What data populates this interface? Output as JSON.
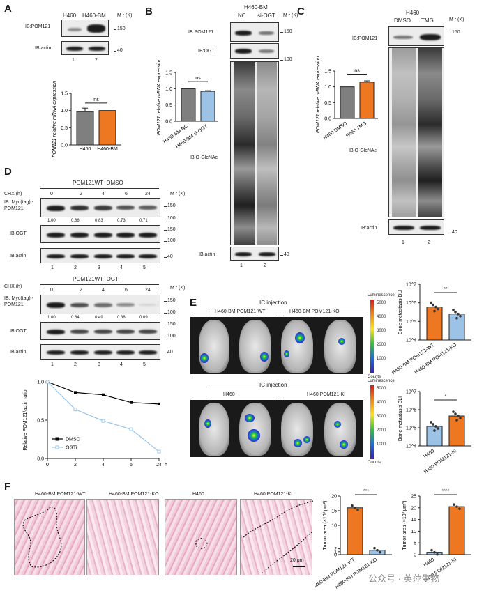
{
  "panels": {
    "A": "A",
    "B": "B",
    "C": "C",
    "D": "D",
    "E": "E",
    "F": "F"
  },
  "common": {
    "mw_unit": "M r (K)",
    "mw150": "150",
    "mw100": "100",
    "mw40": "40",
    "ib_pom121": "IB:POM121",
    "ib_actin": "IB:actin",
    "ib_ogt": "IB:OGT",
    "ib_oglcnac": "IB:O-GlcNAc",
    "lane1": "1",
    "lane2": "2",
    "lane3": "3",
    "lane4": "4",
    "lane5": "5",
    "ns": "ns"
  },
  "panelA": {
    "lanes": [
      "H460",
      "H460-BM"
    ],
    "ylabel": "POM121 relative mRNA expression",
    "chart_data": {
      "type": "bar",
      "categories": [
        "H460",
        "H460-BM"
      ],
      "values": [
        0.97,
        1.0
      ],
      "errors": [
        0.1,
        0
      ],
      "ylim": [
        0,
        1.5
      ],
      "yticks": [
        "0.0",
        "0.5",
        "1.0",
        "1.5"
      ],
      "ylabel": "POM121 relative mRNA expression",
      "colors": [
        "#7f7f7f",
        "#ee7722"
      ]
    }
  },
  "panelB": {
    "title": "H460-BM",
    "lanes": [
      "NC",
      "si-OGT"
    ],
    "ylabel": "POM121 relative mRNA expression",
    "chart_data": {
      "type": "bar",
      "categories": [
        "H460-BM NC",
        "H460-BM si-OGT"
      ],
      "values": [
        1.0,
        0.92
      ],
      "errors": [
        0,
        0.02
      ],
      "ylim": [
        0,
        1.5
      ],
      "yticks": [
        "0.0",
        "0.5",
        "1.0",
        "1.5"
      ],
      "ylabel": "POM121 relative mRNA expression",
      "colors": [
        "#7f7f7f",
        "#9cc3e6"
      ]
    }
  },
  "panelC": {
    "title": "H460",
    "lanes": [
      "DMSO",
      "TMG"
    ],
    "ylabel": "POM121 relative mRNA expression",
    "chart_data": {
      "type": "bar",
      "categories": [
        "H460 DMSO",
        "H460 TMG"
      ],
      "values": [
        1.0,
        1.15
      ],
      "errors": [
        0,
        0.04
      ],
      "ylim": [
        0,
        1.5
      ],
      "yticks": [
        "0.0",
        "0.5",
        "1.0",
        "1.5"
      ],
      "ylabel": "POM121 relative mRNA expression",
      "colors": [
        "#7f7f7f",
        "#ee7722"
      ]
    }
  },
  "panelD": {
    "top_title": "POM121WT+DMSO",
    "bottom_title": "POM121WT+OGTi",
    "chx": "CHX (h)",
    "times": [
      "0",
      "2",
      "4",
      "6",
      "24"
    ],
    "myc_label": "IB: Myc(tag) -POM121",
    "dmso_ratios": [
      "1.00",
      "0.86",
      "0.83",
      "0.73",
      "0.71"
    ],
    "ogti_ratios": [
      "1.00",
      "0.64",
      "0.49",
      "0.38",
      "0.09"
    ],
    "plot_ylabel": "Relative POM121/actin ratio",
    "plot_xunit": "h",
    "chart_data": {
      "type": "line",
      "x": [
        0,
        2,
        4,
        6,
        24
      ],
      "xticks": [
        "0",
        "2",
        "4",
        "6",
        "24"
      ],
      "series": [
        {
          "name": "DMSO",
          "values": [
            1.0,
            0.86,
            0.83,
            0.73,
            0.71
          ],
          "color": "#000000"
        },
        {
          "name": "OGTi",
          "values": [
            1.0,
            0.64,
            0.49,
            0.38,
            0.09
          ],
          "color": "#9cc3e6"
        }
      ],
      "ylim": [
        0,
        1.0
      ],
      "yticks": [
        "0.0",
        "0.5",
        "1.0"
      ],
      "ylabel": "Relative POM121/actin ratio",
      "xlabel": "h",
      "legend": "lower-left"
    }
  },
  "panelE": {
    "ic_injection": "IC injection",
    "top_groups": [
      "H460-BM POM121-WT",
      "H460-BM POM121-KO"
    ],
    "bottom_groups": [
      "H460",
      "H460 POM121-KI"
    ],
    "luminescence": "Luminescence",
    "counts": "Counts",
    "scale": [
      "5000",
      "4000",
      "3000",
      "2000",
      "1000"
    ],
    "bli_ylabel": "Bone metastasis BLI",
    "top_chart": {
      "type": "bar",
      "categories": [
        "H460-BM POM121-WT",
        "H460-BM POM121-KO"
      ],
      "values": [
        600000,
        250000
      ],
      "ylim": [
        10000,
        10000000
      ],
      "yticks": [
        "10^4",
        "10^5",
        "10^6",
        "10^7"
      ],
      "sig": "**",
      "colors": [
        "#ee7722",
        "#9cc3e6"
      ],
      "scale": "log"
    },
    "bottom_chart": {
      "type": "bar",
      "categories": [
        "H460",
        "H460 POM121-KI"
      ],
      "values": [
        120000,
        450000
      ],
      "ylim": [
        10000,
        10000000
      ],
      "yticks": [
        "10^4",
        "10^5",
        "10^6",
        "10^7"
      ],
      "sig": "*",
      "colors": [
        "#9cc3e6",
        "#ee7722"
      ],
      "scale": "log"
    }
  },
  "panelF": {
    "labels": [
      "H460-BM POM121-WT",
      "H460-BM POM121-KO",
      "H460",
      "H460 POM121-KI"
    ],
    "scalebar": "20 μm",
    "ta_ylabel": "Tumor area (×10³ μm²)",
    "left_chart": {
      "type": "bar",
      "categories": [
        "H460-BM POM121-WT",
        "H460-BM POM121-KO"
      ],
      "values": [
        16,
        1.5
      ],
      "ylim": [
        0,
        20
      ],
      "yticks": [
        "0",
        "1",
        "2",
        "10",
        "15",
        "20"
      ],
      "sig": "***",
      "colors": [
        "#ee7722",
        "#9cc3e6"
      ]
    },
    "right_chart": {
      "type": "bar",
      "categories": [
        "H460",
        "H460 POM121-KI"
      ],
      "values": [
        1,
        20.5
      ],
      "ylim": [
        0,
        25
      ],
      "yticks": [
        "0",
        "5",
        "10",
        "15",
        "20",
        "25"
      ],
      "sig": "****",
      "colors": [
        "#9cc3e6",
        "#ee7722"
      ]
    },
    "watermark": "公众号 · 英萍生物"
  }
}
